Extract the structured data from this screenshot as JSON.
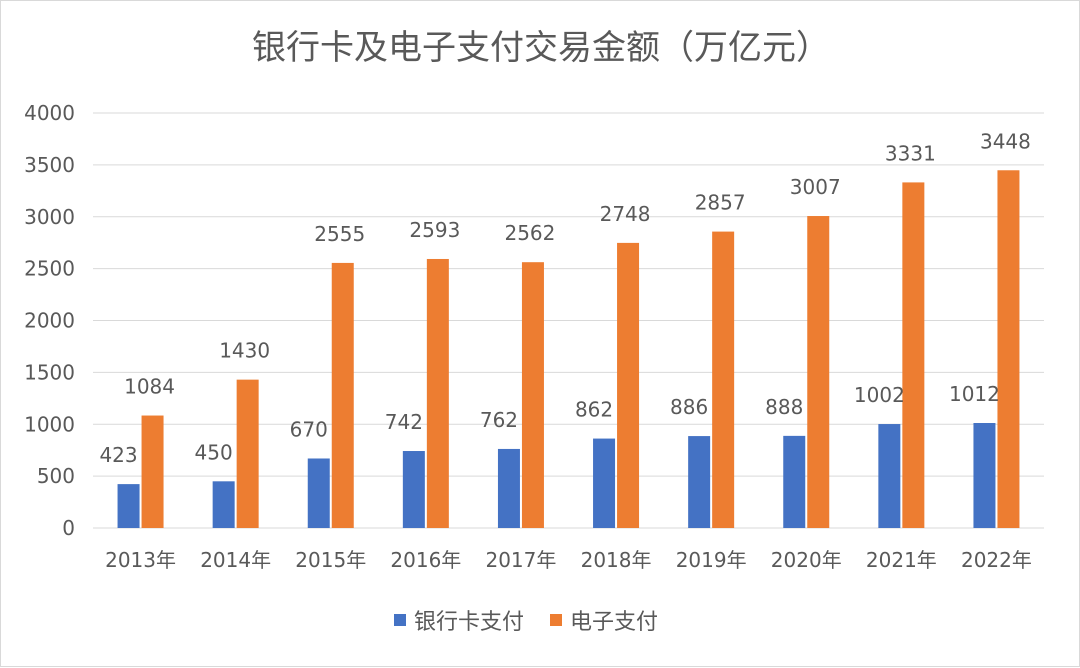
{
  "chart_data": {
    "type": "bar",
    "title": "银行卡及电子支付交易金额（万亿元）",
    "categories": [
      "2013年",
      "2014年",
      "2015年",
      "2016年",
      "2017年",
      "2018年",
      "2019年",
      "2020年",
      "2021年",
      "2022年"
    ],
    "series": [
      {
        "name": "银行卡支付",
        "color": "#4472c4",
        "values": [
          423,
          450,
          670,
          742,
          762,
          862,
          886,
          888,
          1002,
          1012
        ]
      },
      {
        "name": "电子支付",
        "color": "#ed7d31",
        "values": [
          1084,
          1430,
          2555,
          2593,
          2562,
          2748,
          2857,
          3007,
          3331,
          3448
        ]
      }
    ],
    "ylim": [
      0,
      4000
    ],
    "yticks": [
      0,
      500,
      1000,
      1500,
      2000,
      2500,
      3000,
      3500,
      4000
    ],
    "grid": true,
    "legend": "bottom",
    "colors": {
      "grid": "#d9d9d9",
      "text": "#595959",
      "title": "#595959"
    }
  }
}
